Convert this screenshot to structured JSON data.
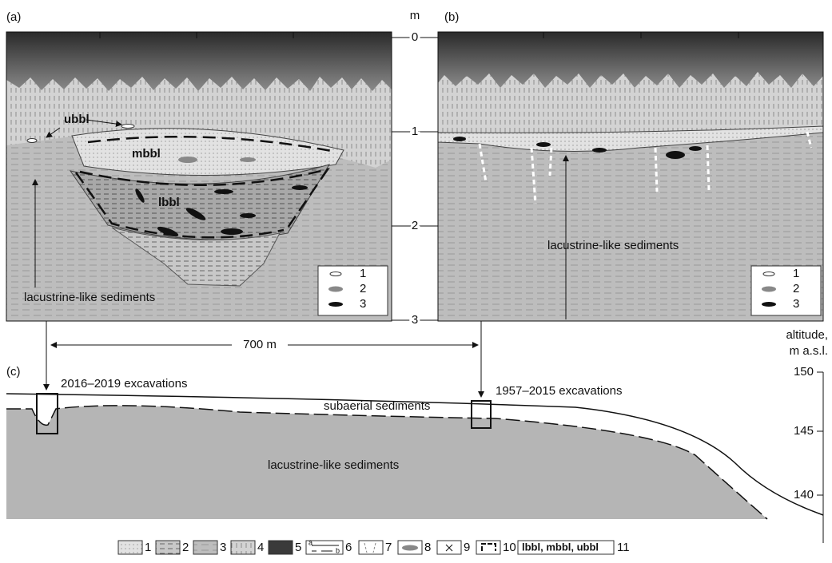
{
  "panel_a": {
    "label": "(a)",
    "ubbl": "ubbl",
    "mbbl": "mbbl",
    "lbbl": "lbbl",
    "sediments": "lacustrine-like sediments",
    "legend": [
      "1",
      "2",
      "3"
    ]
  },
  "panel_b": {
    "label": "(b)",
    "sediments": "lacustrine-like sediments",
    "legend": [
      "1",
      "2",
      "3"
    ]
  },
  "depth_scale": {
    "unit": "m",
    "ticks": [
      "0",
      "1",
      "2",
      "3"
    ]
  },
  "distance": "700 m",
  "panel_c": {
    "label": "(c)",
    "axis_title": [
      "altitude,",
      "m a.s.l."
    ],
    "ticks": [
      "150",
      "145",
      "140"
    ],
    "excavations_left": "2016–2019 excavations",
    "excavations_right": "1957–2015 excavations",
    "subaerial": "subaerial sediments",
    "sediments": "lacustrine-like sediments"
  },
  "legend": {
    "numbers": [
      "1",
      "2",
      "3",
      "4",
      "5",
      "6",
      "7",
      "8",
      "9",
      "10",
      "11"
    ],
    "sub_a": "a",
    "sub_b": "b",
    "units": "lbbl, mbbl, ubbl"
  }
}
